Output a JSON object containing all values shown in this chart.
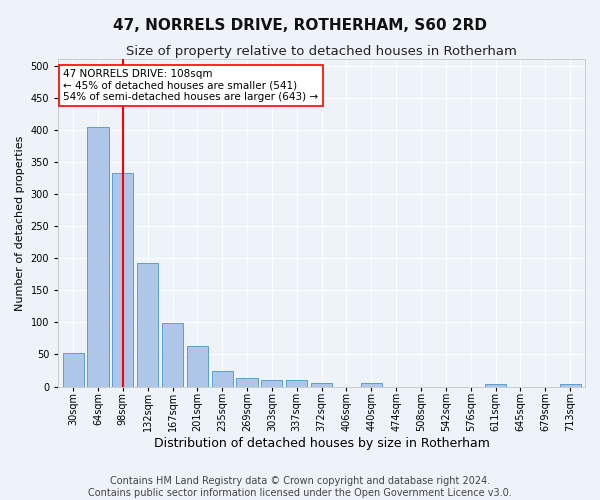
{
  "title": "47, NORRELS DRIVE, ROTHERHAM, S60 2RD",
  "subtitle": "Size of property relative to detached houses in Rotherham",
  "xlabel": "Distribution of detached houses by size in Rotherham",
  "ylabel": "Number of detached properties",
  "categories": [
    "30sqm",
    "64sqm",
    "98sqm",
    "132sqm",
    "167sqm",
    "201sqm",
    "235sqm",
    "269sqm",
    "303sqm",
    "337sqm",
    "372sqm",
    "406sqm",
    "440sqm",
    "474sqm",
    "508sqm",
    "542sqm",
    "576sqm",
    "611sqm",
    "645sqm",
    "679sqm",
    "713sqm"
  ],
  "values": [
    52,
    405,
    332,
    192,
    99,
    63,
    24,
    13,
    10,
    10,
    6,
    0,
    5,
    0,
    0,
    0,
    0,
    4,
    0,
    0,
    4
  ],
  "bar_color": "#aec6e8",
  "bar_edge_color": "#5a9fd4",
  "vline_x_index": 2,
  "vline_color": "red",
  "annotation_text": "47 NORRELS DRIVE: 108sqm\n← 45% of detached houses are smaller (541)\n54% of semi-detached houses are larger (643) →",
  "annotation_box_color": "white",
  "annotation_box_edge": "red",
  "ylim": [
    0,
    510
  ],
  "yticks": [
    0,
    50,
    100,
    150,
    200,
    250,
    300,
    350,
    400,
    450,
    500
  ],
  "background_color": "#eef2f9",
  "footer_text": "Contains HM Land Registry data © Crown copyright and database right 2024.\nContains public sector information licensed under the Open Government Licence v3.0.",
  "title_fontsize": 11,
  "subtitle_fontsize": 9.5,
  "xlabel_fontsize": 9,
  "ylabel_fontsize": 8,
  "footer_fontsize": 7,
  "tick_fontsize": 7,
  "annotation_fontsize": 7.5
}
